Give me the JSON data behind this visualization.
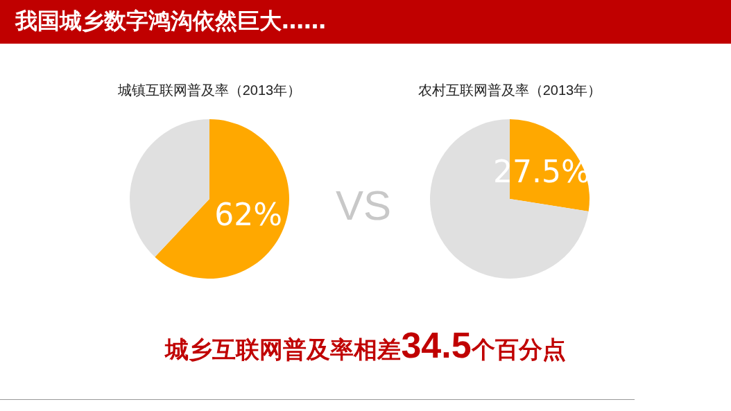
{
  "chart_data": [
    {
      "type": "pie",
      "title": "城镇互联网普及率（2013年）",
      "categories": [
        null,
        null
      ],
      "values": [
        62,
        38
      ],
      "colors": [
        "#ffa800",
        "#e0e0e0"
      ],
      "value_labels": [
        "62%",
        null
      ],
      "annotations": [
        "我国城乡数字鸿沟依然巨大……",
        "VS"
      ]
    },
    {
      "type": "pie",
      "title": "农村互联网普及率（2013年）",
      "categories": [
        null,
        null
      ],
      "values": [
        27.5,
        72.5
      ],
      "colors": [
        "#ffa800",
        "#e0e0e0"
      ],
      "value_labels": [
        "27.5%",
        null
      ],
      "annotations": [
        "城乡互联网普及率相差34.5个百分点"
      ]
    }
  ]
}
